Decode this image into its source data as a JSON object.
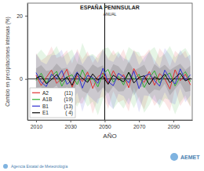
{
  "chart_data": {
    "type": "line",
    "title": "ESPAÑA PENINSULAR",
    "subtitle": "ANUAL",
    "x_label": "AÑO",
    "y_label": "Cambio en precipitaciones intensas (%)",
    "source": "Agencia Estatal de Meteorología",
    "logo": "AEMET",
    "xlim": [
      2005,
      2101
    ],
    "ylim": [
      -13,
      24
    ],
    "xticks": [
      2010,
      2030,
      2050,
      2070,
      2090
    ],
    "yticks": [
      0,
      20
    ],
    "vline": 2050,
    "hline": 0,
    "grid": false,
    "legend": "lower left",
    "x": [
      2010,
      2013,
      2016,
      2019,
      2022,
      2025,
      2028,
      2031,
      2034,
      2037,
      2040,
      2043,
      2046,
      2049,
      2052,
      2055,
      2058,
      2061,
      2064,
      2067,
      2070,
      2073,
      2076,
      2079,
      2082,
      2085,
      2088,
      2091,
      2094,
      2097,
      2100
    ],
    "series": [
      {
        "name": "A2",
        "n_label": "(11)",
        "color": "#e03030",
        "values": [
          1.2,
          -2.1,
          0.5,
          2.8,
          -1.4,
          0.3,
          3.1,
          -2.6,
          1.0,
          -0.8,
          2.2,
          -3.0,
          0.7,
          1.9,
          -1.5,
          2.6,
          -0.4,
          1.4,
          -2.8,
          3.3,
          0.2,
          -1.1,
          2.4,
          -2.0,
          1.7,
          0.1,
          -3.2,
          2.9,
          -0.6,
          1.5,
          -1.9
        ],
        "spread": [
          7,
          8,
          6.5,
          7.5,
          8,
          7,
          6,
          7.5,
          8.5,
          7,
          6.5,
          8,
          7,
          7.5,
          8,
          6.5,
          7,
          8,
          7.5,
          6,
          7,
          8.5,
          7,
          6.5,
          8,
          7.5,
          7,
          6,
          8,
          7.5,
          7
        ]
      },
      {
        "name": "A1B",
        "n_label": "(19)",
        "color": "#30b030",
        "values": [
          -0.5,
          1.8,
          -1.2,
          0.9,
          2.4,
          -2.3,
          0.6,
          1.3,
          -1.8,
          2.9,
          -0.7,
          0.4,
          -2.5,
          1.6,
          3.0,
          -1.0,
          0.8,
          -1.9,
          2.1,
          -0.2,
          1.5,
          -2.7,
          0.3,
          2.6,
          -1.3,
          0.9,
          1.9,
          -2.2,
          0.6,
          2.3,
          -0.8
        ],
        "spread": [
          8,
          7.5,
          8.5,
          7,
          8,
          9,
          7.5,
          8,
          7,
          8.5,
          8,
          7.5,
          9,
          8,
          7,
          8.5,
          8,
          7.5,
          8,
          9,
          7,
          8,
          8.5,
          7.5,
          8,
          7,
          8.5,
          9,
          8,
          7.5,
          8
        ]
      },
      {
        "name": "B1",
        "n_label": "(13)",
        "color": "#3030d0",
        "values": [
          2.0,
          -1.0,
          -2.4,
          1.5,
          0.2,
          2.7,
          -1.7,
          -0.3,
          2.2,
          -2.9,
          1.1,
          0.5,
          -1.4,
          3.4,
          -0.9,
          -2.1,
          1.8,
          0.6,
          -1.2,
          2.5,
          -3.1,
          0.8,
          1.6,
          -0.5,
          -2.3,
          2.8,
          0.1,
          -1.6,
          3.2,
          -0.4,
          1.3
        ],
        "spread": [
          6,
          6.5,
          7,
          6,
          7.5,
          6.5,
          6,
          7,
          6.5,
          7.5,
          6,
          7,
          6.5,
          6,
          7,
          7.5,
          6.5,
          6,
          7,
          6.5,
          7.5,
          6,
          7,
          6.5,
          6,
          7,
          7.5,
          6.5,
          6,
          7,
          6.5
        ]
      },
      {
        "name": "E1",
        "n_label": "( 4)",
        "color": "#000000",
        "values": [
          0.3,
          0.9,
          -1.5,
          -0.2,
          1.4,
          -0.8,
          0.6,
          -2.0,
          1.9,
          0.2,
          -1.1,
          1.6,
          -0.4,
          0.8,
          -1.7,
          1.2,
          0.0,
          -0.9,
          2.1,
          -1.3,
          0.5,
          1.0,
          -1.8,
          0.7,
          -0.2,
          1.5,
          -1.2,
          0.4,
          1.8,
          -0.6,
          0.2
        ],
        "spread": [
          3,
          3.5,
          4,
          3,
          3.5,
          4,
          3,
          3.5,
          3,
          4,
          3.5,
          3,
          4,
          3.5,
          3,
          3.5,
          4,
          3,
          3.5,
          4,
          3,
          3.5,
          3,
          4,
          3.5,
          3,
          4,
          3.5,
          3,
          3.5,
          4
        ]
      }
    ]
  }
}
